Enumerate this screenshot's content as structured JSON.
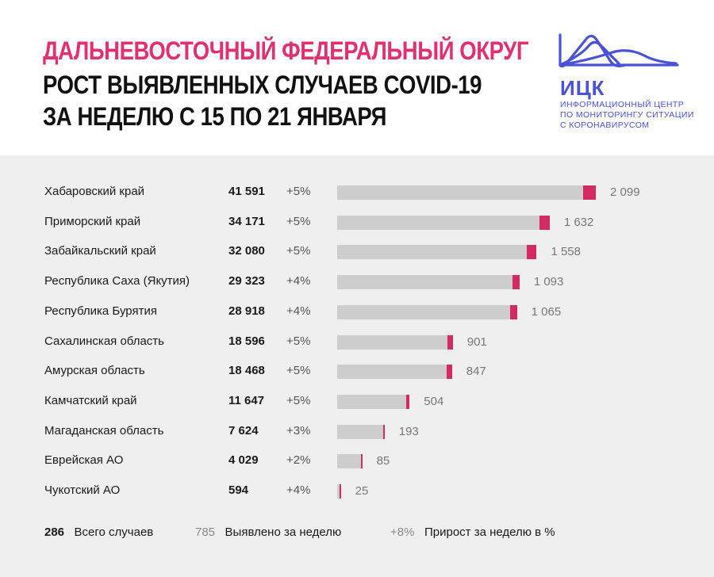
{
  "header": {
    "title_line1": "ДАЛЬНЕВОСТОЧНЫЙ ФЕДЕРАЛЬНЫЙ ОКРУГ",
    "title_line2": "РОСТ ВЫЯВЛЕННЫХ СЛУЧАЕВ COVID-19",
    "title_line3": "ЗА НЕДЕЛЮ С 15 ПО 21 ЯНВАРЯ"
  },
  "logo": {
    "name": "ИЦК",
    "sub_line1": "ИНФОРМАЦИОННЫЙ ЦЕНТР",
    "sub_line2": "ПО МОНИТОРИНГУ СИТУАЦИИ",
    "sub_line3": "С КОРОНАВИРУСОМ",
    "color": "#4a52d6"
  },
  "colors": {
    "title_accent": "#e0306e",
    "bar_base": "#cdcdcd",
    "bar_new": "#d42a63",
    "panel_bg": "#f0efef"
  },
  "legend": {
    "total_example": "286",
    "total_label": "Всего случаев",
    "weekly_example": "785",
    "weekly_label": "Выявлено за неделю",
    "growth_example": "+8%",
    "growth_label": "Прирост за неделю в %"
  },
  "chart_data": {
    "type": "bar",
    "orientation": "horizontal",
    "stacked": true,
    "categories": [
      "Хабаровский край",
      "Приморский край",
      "Забайкальский край",
      "Республика Саха (Якутия)",
      "Республика Бурятия",
      "Сахалинская область",
      "Амурская область",
      "Камчатский край",
      "Магаданская область",
      "Еврейская АО",
      "Чукотский АО"
    ],
    "totals": [
      41591,
      34171,
      32080,
      29323,
      28918,
      18596,
      18468,
      11647,
      7624,
      4029,
      594
    ],
    "totals_label": [
      "41 591",
      "34 171",
      "32 080",
      "29 323",
      "28 918",
      "18 596",
      "18 468",
      "11 647",
      "7 624",
      "4 029",
      "594"
    ],
    "growth": [
      "+5%",
      "+5%",
      "+5%",
      "+4%",
      "+4%",
      "+5%",
      "+5%",
      "+5%",
      "+3%",
      "+2%",
      "+4%"
    ],
    "weekly_new": [
      2099,
      1632,
      1558,
      1093,
      1065,
      901,
      847,
      504,
      193,
      85,
      25
    ],
    "weekly_label": [
      "2 099",
      "1 632",
      "1 558",
      "1 093",
      "1 065",
      "901",
      "847",
      "504",
      "193",
      "85",
      "25"
    ],
    "grid": false
  }
}
